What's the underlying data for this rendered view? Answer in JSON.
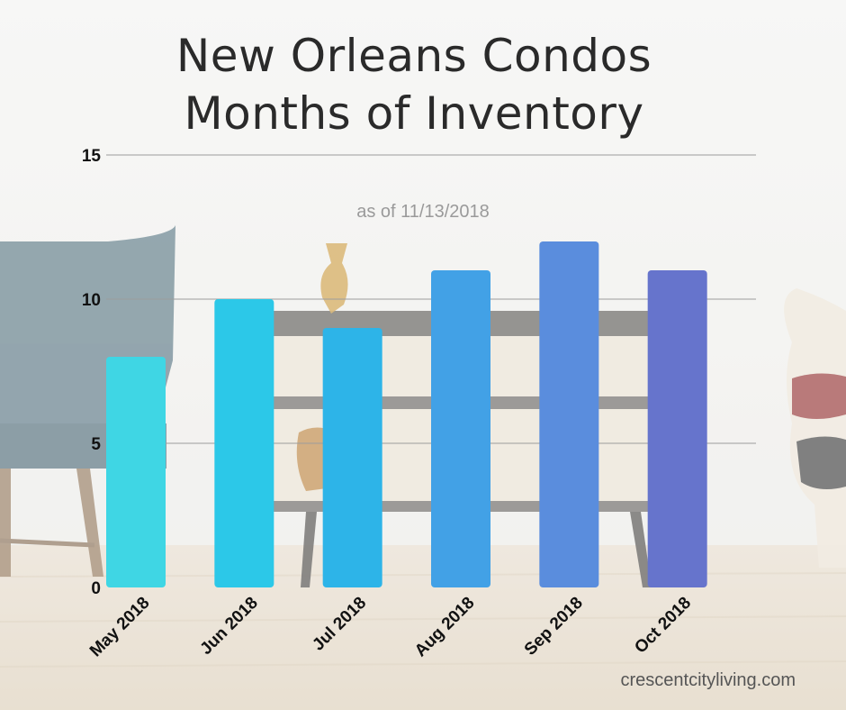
{
  "header": {
    "title_line1": "New Orleans Condos",
    "title_line2": "Months of Inventory",
    "subtitle": "as of 11/13/2018"
  },
  "footer": {
    "credit": "crescentcityliving.com"
  },
  "chart_data": {
    "type": "bar",
    "title": "New Orleans Condos Months of Inventory",
    "subtitle": "as of 11/13/2018",
    "categories": [
      "May 2018",
      "Jun 2018",
      "Jul 2018",
      "Aug 2018",
      "Sep 2018",
      "Oct 2018"
    ],
    "values": [
      8,
      10,
      9,
      11,
      12,
      11
    ],
    "ylim": [
      0,
      15
    ],
    "yticks": [
      0,
      5,
      10,
      15
    ],
    "grid": true,
    "colors": [
      "#3fd6e4",
      "#2cc8e8",
      "#2db4e8",
      "#42a1e6",
      "#5a8ddd",
      "#6674cc"
    ]
  }
}
